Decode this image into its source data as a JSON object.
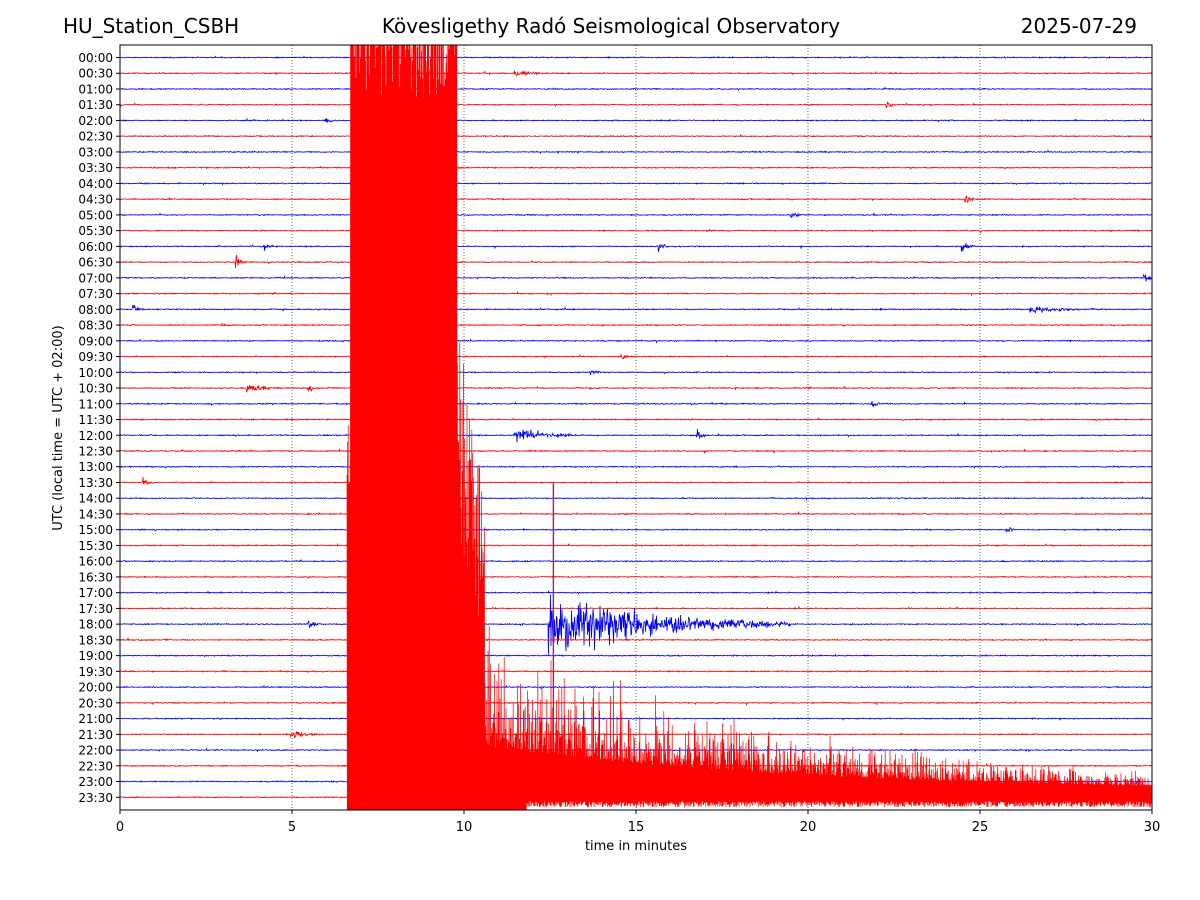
{
  "header": {
    "station": "HU_Station_CSBH",
    "observatory": "Kövesligethy Radó Seismological Observatory",
    "date": "2025-07-29"
  },
  "chart_data": {
    "type": "line",
    "title": "Kövesligethy Radó Seismological Observatory",
    "xlabel": "time in minutes",
    "ylabel": "UTC (local time = UTC + 02:00)",
    "xlim": [
      0,
      30
    ],
    "x_ticks": [
      0,
      5,
      10,
      15,
      20,
      25,
      30
    ],
    "grid": "vertical dotted at 5-minute intervals",
    "trace_colors": [
      "#0000ff",
      "#ff0000"
    ],
    "rows": [
      "00:00",
      "00:30",
      "01:00",
      "01:30",
      "02:00",
      "02:30",
      "03:00",
      "03:30",
      "04:00",
      "04:30",
      "05:00",
      "05:30",
      "06:00",
      "06:30",
      "07:00",
      "07:30",
      "08:00",
      "08:30",
      "09:00",
      "09:30",
      "10:00",
      "10:30",
      "11:00",
      "11:30",
      "12:00",
      "12:30",
      "13:00",
      "13:30",
      "14:00",
      "14:30",
      "15:00",
      "15:30",
      "16:00",
      "16:30",
      "17:00",
      "17:30",
      "18:00",
      "18:30",
      "19:00",
      "19:30",
      "20:00",
      "20:30",
      "21:00",
      "21:30",
      "22:00",
      "22:30",
      "23:00",
      "23:30"
    ],
    "events": [
      {
        "row": "00:30",
        "minute": 11.5,
        "amplitude": 0.3,
        "duration": 1.5
      },
      {
        "row": "01:30",
        "minute": 22.3,
        "amplitude": 0.5,
        "duration": 0.3
      },
      {
        "row": "02:00",
        "minute": 6.0,
        "amplitude": 0.35,
        "duration": 0.4
      },
      {
        "row": "04:30",
        "minute": 24.6,
        "amplitude": 0.6,
        "duration": 0.4
      },
      {
        "row": "05:00",
        "minute": 19.5,
        "amplitude": 0.3,
        "duration": 0.6
      },
      {
        "row": "06:00",
        "minute": 4.2,
        "amplitude": 0.45,
        "duration": 0.5
      },
      {
        "row": "06:00",
        "minute": 15.7,
        "amplitude": 0.6,
        "duration": 0.3
      },
      {
        "row": "06:00",
        "minute": 24.5,
        "amplitude": 0.5,
        "duration": 0.5
      },
      {
        "row": "06:30",
        "minute": 3.4,
        "amplitude": 0.8,
        "duration": 0.3
      },
      {
        "row": "07:00",
        "minute": 29.8,
        "amplitude": 0.6,
        "duration": 0.3
      },
      {
        "row": "08:00",
        "minute": 0.4,
        "amplitude": 0.5,
        "duration": 0.4
      },
      {
        "row": "08:00",
        "minute": 26.5,
        "amplitude": 0.35,
        "duration": 3.0
      },
      {
        "row": "09:30",
        "minute": 14.6,
        "amplitude": 0.4,
        "duration": 0.5
      },
      {
        "row": "10:00",
        "minute": 13.7,
        "amplitude": 0.45,
        "duration": 0.4
      },
      {
        "row": "10:30",
        "minute": 3.7,
        "amplitude": 0.55,
        "duration": 1.2
      },
      {
        "row": "10:30",
        "minute": 5.5,
        "amplitude": 0.45,
        "duration": 0.4
      },
      {
        "row": "11:00",
        "minute": 21.9,
        "amplitude": 0.45,
        "duration": 0.4
      },
      {
        "row": "12:00",
        "minute": 11.5,
        "amplitude": 0.9,
        "duration": 2.0
      },
      {
        "row": "12:00",
        "minute": 16.8,
        "amplitude": 0.45,
        "duration": 0.4
      },
      {
        "row": "13:30",
        "minute": 0.7,
        "amplitude": 0.4,
        "duration": 0.5
      },
      {
        "row": "15:00",
        "minute": 25.8,
        "amplitude": 0.35,
        "duration": 0.3
      },
      {
        "row": "18:00",
        "minute": 5.5,
        "amplitude": 0.5,
        "duration": 0.5
      },
      {
        "row": "18:00",
        "minute": 12.5,
        "amplitude": 3.4,
        "duration": 7.0
      },
      {
        "row": "21:30",
        "minute": 5.0,
        "amplitude": 0.5,
        "duration": 1.2
      }
    ],
    "large_event": {
      "row": "23:30",
      "colour": "#ff0000",
      "onset_minute": 6.6,
      "peak_window_minutes": [
        6.7,
        9.8
      ],
      "coda_end_minute": 30,
      "spikes": [
        {
          "minute": 12.6,
          "colour": "#0000ff",
          "row": "18:00",
          "top_row": "13:30",
          "bottom_row": "20:30"
        },
        {
          "minute": 12.6,
          "colour": "#ff0000",
          "row": "23:30",
          "top_row": "13:30",
          "bottom_row": "23:30"
        }
      ]
    }
  }
}
